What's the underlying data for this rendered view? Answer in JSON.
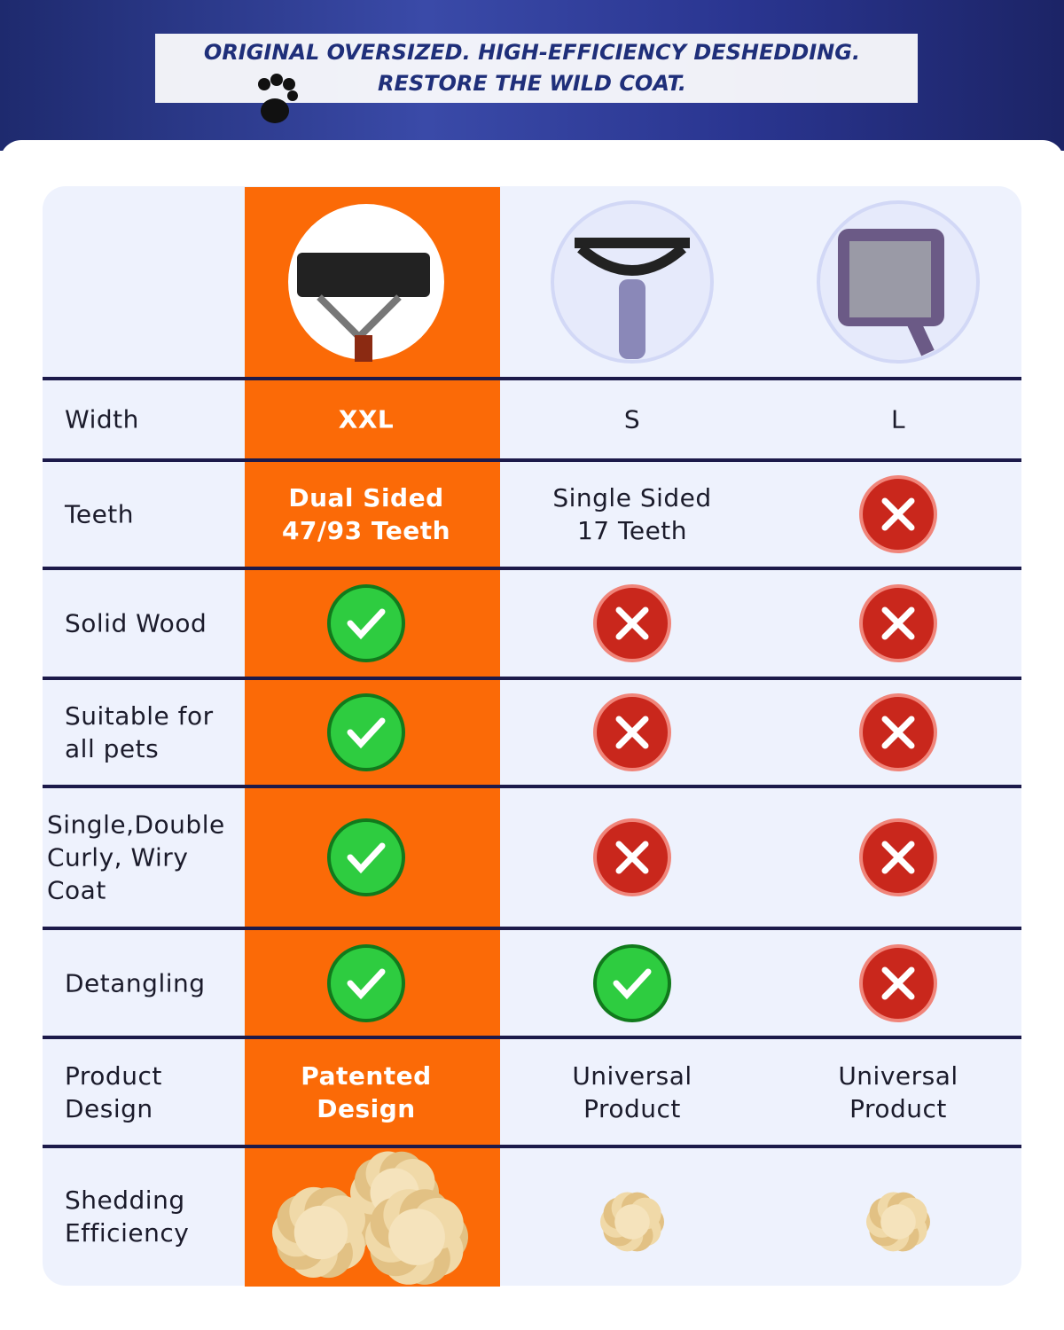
{
  "header": {
    "line1": "ORIGINAL OVERSIZED. HIGH-EFFICIENCY DESHEDDING.",
    "line2": "RESTORE THE WILD COAT."
  },
  "table": {
    "rows": [
      [
        "Width",
        "XXL",
        "S",
        "L"
      ],
      [
        "Teeth",
        "Dual Sided\n47/93 Teeth",
        "Single Sided\n17 Teeth"
      ],
      [
        "Solid Wood"
      ],
      [
        "Suitable for\nall pets"
      ],
      [
        "Single,Double\nCurly, Wiry\nCoat"
      ],
      [
        "Detangling"
      ],
      [
        "Product\nDesign",
        "Patented\nDesign",
        "Universal\nProduct",
        "Universal\nProduct"
      ],
      [
        "Shedding\nEfficiency"
      ]
    ]
  }
}
